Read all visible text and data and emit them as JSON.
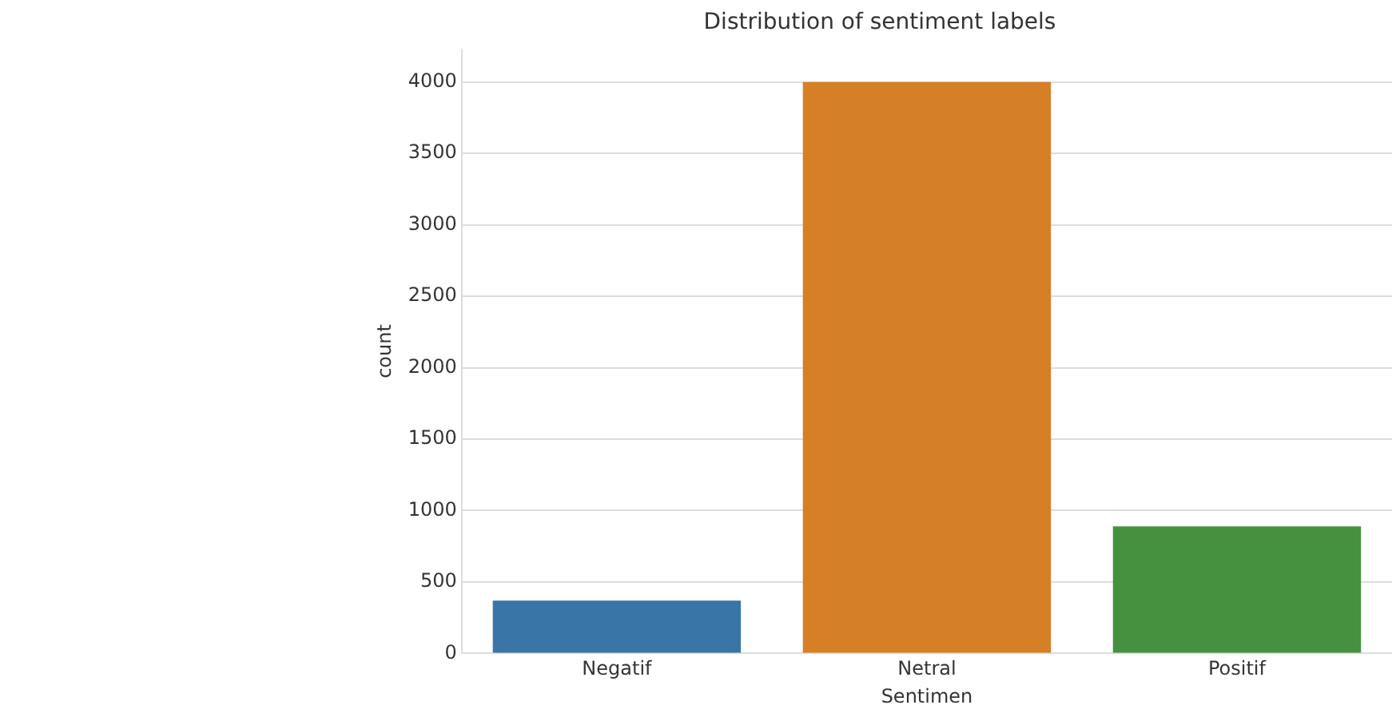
{
  "chart_data": {
    "type": "bar",
    "title": "Distribution of sentiment labels",
    "xlabel": "Sentimen",
    "ylabel": "count",
    "categories": [
      "Negatif",
      "Netral",
      "Positif"
    ],
    "values": [
      370,
      4000,
      890
    ],
    "colors": [
      "#3a75a8",
      "#d57f27",
      "#45913f"
    ],
    "ylim": [
      0,
      4230
    ],
    "yticks": [
      0,
      500,
      1000,
      1500,
      2000,
      2500,
      3000,
      3500,
      4000
    ],
    "grid": "y",
    "legend": false
  }
}
